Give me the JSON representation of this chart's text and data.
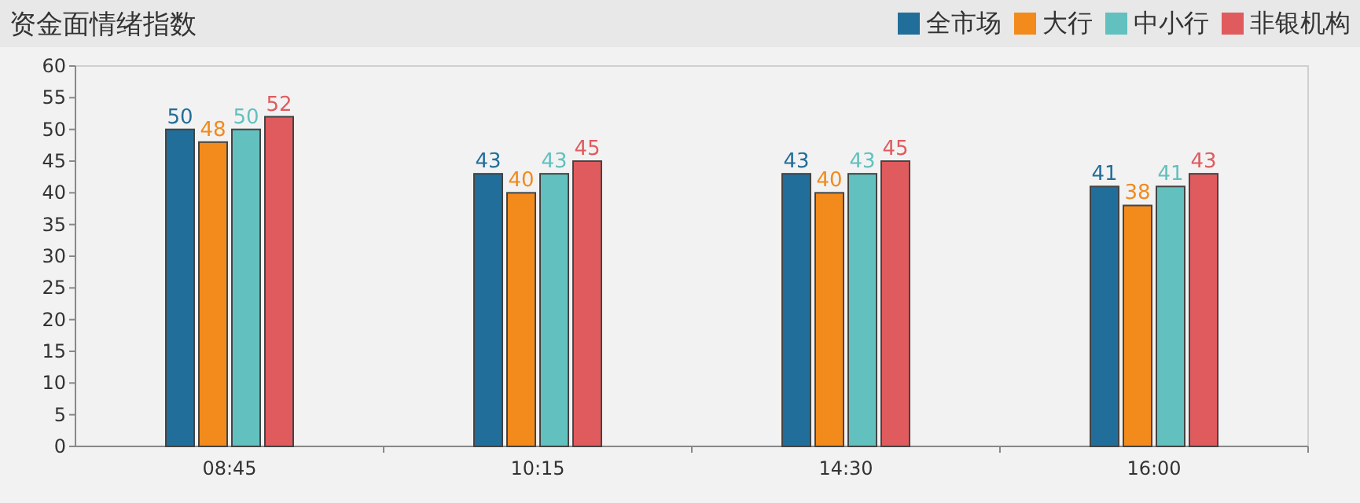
{
  "chart_data": {
    "type": "bar",
    "title": "资金面情绪指数",
    "categories": [
      "08:45",
      "10:15",
      "14:30",
      "16:00"
    ],
    "series": [
      {
        "name": "全市场",
        "color": "#226e9a",
        "values": [
          50,
          43,
          43,
          41
        ]
      },
      {
        "name": "大行",
        "color": "#f28a1c",
        "values": [
          48,
          40,
          40,
          38
        ]
      },
      {
        "name": "中小行",
        "color": "#62c1be",
        "values": [
          50,
          43,
          43,
          41
        ]
      },
      {
        "name": "非银机构",
        "color": "#e05b5e",
        "values": [
          52,
          45,
          45,
          43
        ]
      }
    ],
    "ylim": [
      0,
      60
    ],
    "yticks": [
      0,
      5,
      10,
      15,
      20,
      25,
      30,
      35,
      40,
      45,
      50,
      55,
      60
    ],
    "grid": false,
    "legend": "top right",
    "data_labels": true
  }
}
